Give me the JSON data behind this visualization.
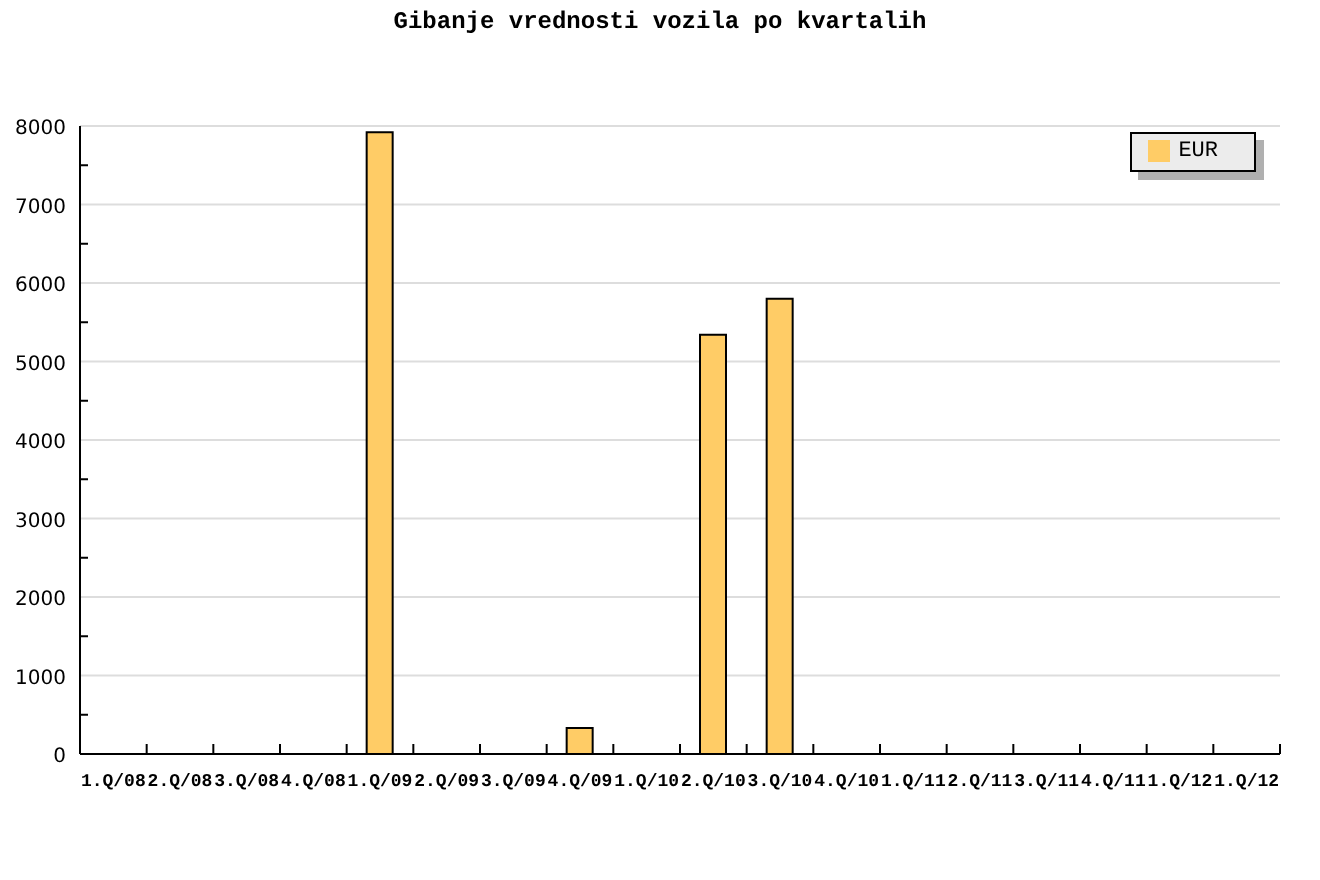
{
  "chart_data": {
    "type": "bar",
    "title": "Gibanje vrednosti vozila po kvartalih",
    "categories": [
      "1.Q/08",
      "2.Q/08",
      "3.Q/08",
      "4.Q/08",
      "1.Q/09",
      "2.Q/09",
      "3.Q/09",
      "4.Q/09",
      "1.Q/10",
      "2.Q/10",
      "3.Q/10",
      "4.Q/10",
      "1.Q/11",
      "2.Q/11",
      "3.Q/11",
      "4.Q/11",
      "1.Q/12",
      "1.Q/12"
    ],
    "series": [
      {
        "name": "EUR",
        "color": "#ffcc66",
        "values": [
          0,
          0,
          0,
          0,
          7920,
          0,
          0,
          330,
          0,
          5340,
          5800,
          0,
          0,
          0,
          0,
          0,
          0,
          0
        ]
      }
    ],
    "ylim": [
      0,
      8000
    ],
    "yticks": [
      0,
      {
        "value": 500,
        "label": null
      },
      1000,
      {
        "value": 1500,
        "label": null
      },
      2000,
      {
        "value": 2500,
        "label": null
      },
      3000,
      {
        "value": 3500,
        "label": null
      },
      4000,
      {
        "value": 4500,
        "label": null
      },
      5000,
      {
        "value": 5500,
        "label": null
      },
      6000,
      {
        "value": 6500,
        "label": null
      },
      7000,
      {
        "value": 7500,
        "label": null
      },
      8000
    ],
    "grid": "y",
    "legend": "top right"
  }
}
